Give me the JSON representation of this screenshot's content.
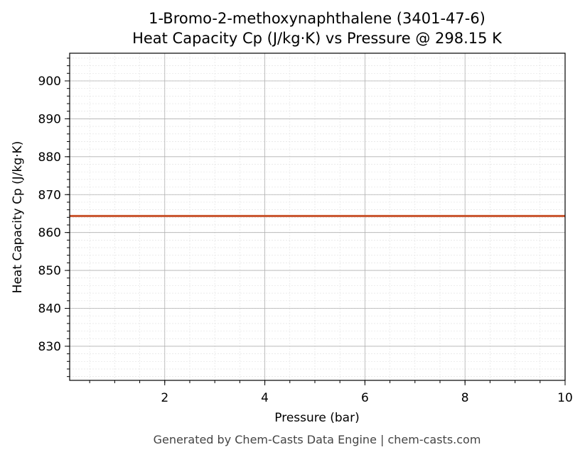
{
  "chart_data": {
    "type": "line",
    "title": "1-Bromo-2-methoxynaphthalene (3401-47-6)",
    "subtitle": "Heat Capacity Cp (J/kg·K) vs Pressure @ 298.15 K",
    "x_label": "Pressure (bar)",
    "y_label": "Heat Capacity Cp (J/kg·K)",
    "footer": "Generated by Chem-Casts Data Engine | chem-casts.com",
    "x": [
      0.1,
      10
    ],
    "series": [
      {
        "name": "Heat Capacity Cp",
        "color": "#c8532b",
        "values": [
          864.36,
          864.36
        ]
      }
    ],
    "xlim": [
      0.1,
      10
    ],
    "xticks": [
      2,
      4,
      6,
      8,
      10
    ],
    "ylim": [
      821.0,
      907.3
    ],
    "yticks": [
      830,
      840,
      850,
      860,
      870,
      880,
      890,
      900
    ],
    "grid": true,
    "minor_grid": true
  }
}
